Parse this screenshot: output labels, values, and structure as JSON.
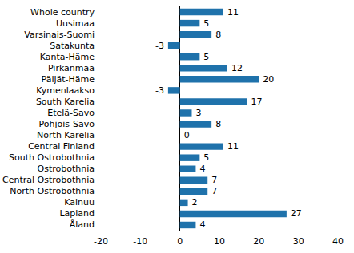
{
  "chart_data": {
    "type": "bar",
    "orientation": "horizontal",
    "categories": [
      "Whole country",
      "Uusimaa",
      "Varsinais-Suomi",
      "Satakunta",
      "Kanta-Häme",
      "Pirkanmaa",
      "Päijät-Häme",
      "Kymenlaakso",
      "South Karelia",
      "Etelä-Savo",
      "Pohjois-Savo",
      "North Karelia",
      "Central Finland",
      "South Ostrobothnia",
      "Ostrobothnia",
      "Central Ostrobothnia",
      "North Ostrobothnia",
      "Kainuu",
      "Lapland",
      "Åland"
    ],
    "values": [
      11,
      5,
      8,
      -3,
      5,
      12,
      20,
      -3,
      17,
      3,
      8,
      0,
      11,
      5,
      4,
      7,
      7,
      2,
      27,
      4
    ],
    "color": "#1f72ab",
    "xlim": [
      -20,
      40
    ],
    "xticks": [
      -20,
      -10,
      0,
      10,
      20,
      30,
      40
    ],
    "grid": false,
    "data_labels": true
  }
}
